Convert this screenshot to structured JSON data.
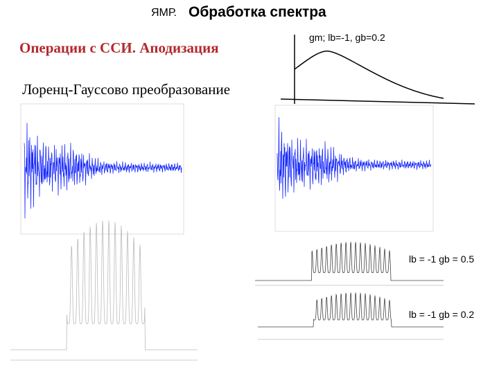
{
  "header": {
    "prefix": "ЯМР.",
    "title": "Обработка спектра"
  },
  "subtitle": "Операции с ССИ. Аподизация",
  "section": "Лоренц-Гауссово преобразование",
  "window_label": "gm; lb=-1, gb=0.2",
  "spectra": [
    {
      "label": "lb = -1 gb = 0.5"
    },
    {
      "label": "lb = -1 gb = 0.2"
    }
  ]
}
